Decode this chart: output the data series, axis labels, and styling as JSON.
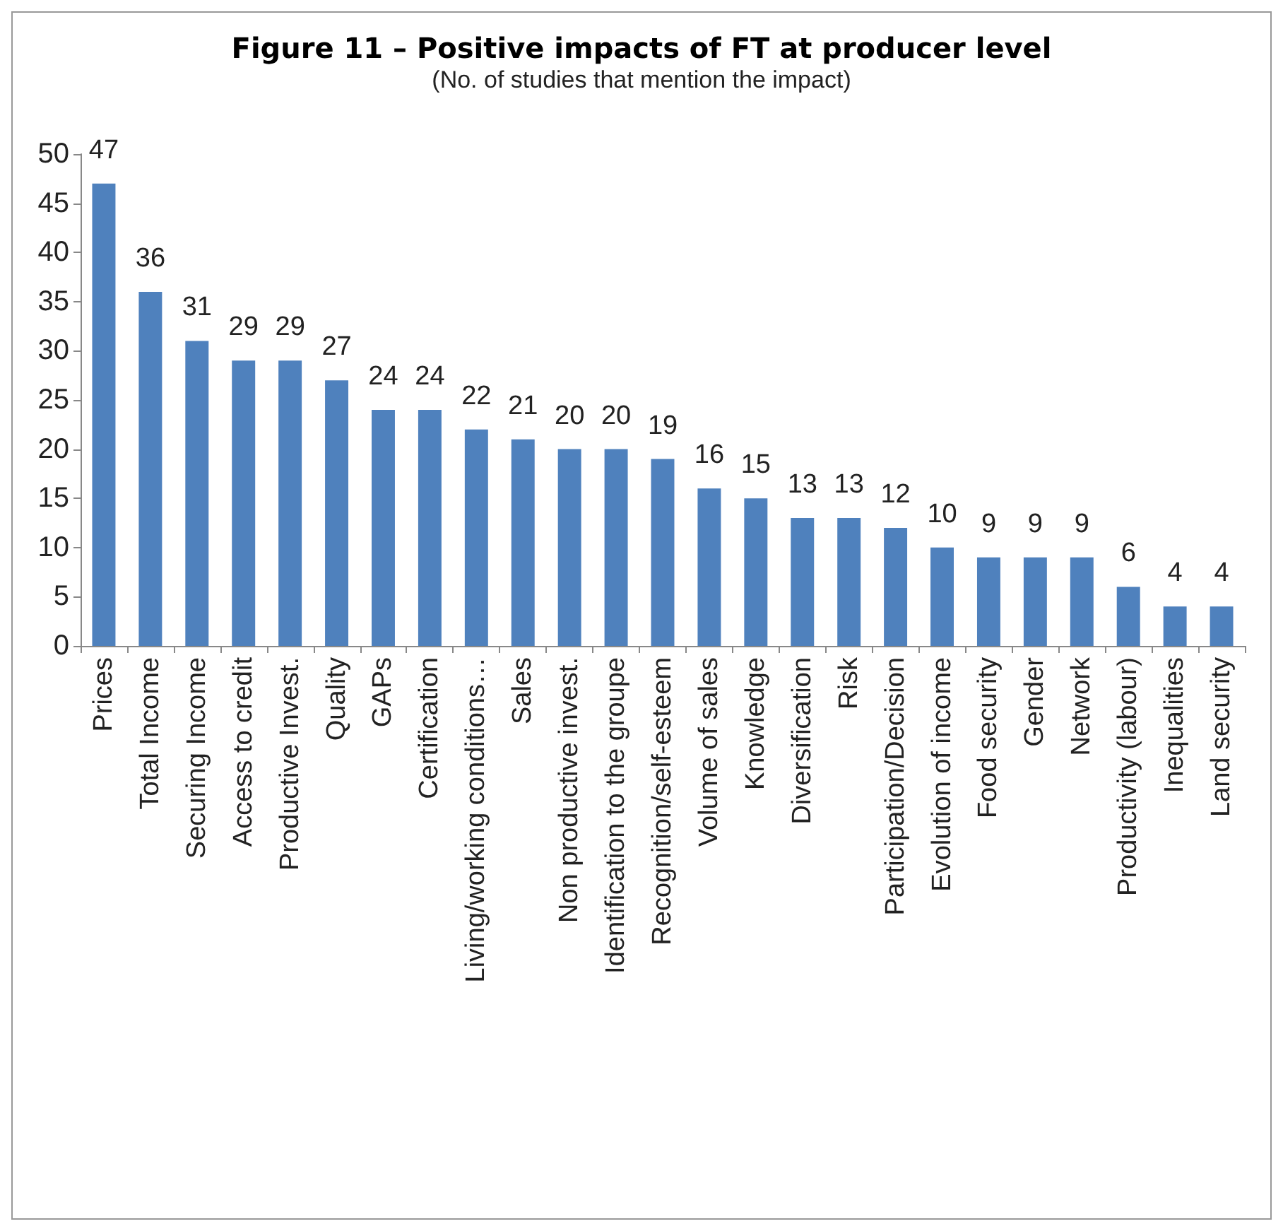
{
  "chart_data": {
    "type": "bar",
    "title": "Figure 11 – Positive impacts of FT at producer level",
    "subtitle": "(No. of studies that mention the impact)",
    "categories": [
      "Prices",
      "Total Income",
      "Securing Income",
      "Access to credit",
      "Productive Invest.",
      "Quality",
      "GAPs",
      "Certification",
      "Living/working conditions…",
      "Sales",
      "Non productive invest.",
      "Identification to the groupe",
      "Recognition/self-esteem",
      "Volume of sales",
      "Knowledge",
      "Diversification",
      "Risk",
      "Participation/Decision",
      "Evolution of income",
      "Food security",
      "Gender",
      "Network",
      "Productivity (labour)",
      "Inequalities",
      "Land security"
    ],
    "values": [
      47,
      36,
      31,
      29,
      29,
      27,
      24,
      24,
      22,
      21,
      20,
      20,
      19,
      16,
      15,
      13,
      13,
      12,
      10,
      9,
      9,
      9,
      6,
      4,
      4
    ],
    "color": "#4f81bd",
    "ylim": [
      0,
      50
    ],
    "yticks": [
      0,
      5,
      10,
      15,
      20,
      25,
      30,
      35,
      40,
      45,
      50
    ],
    "data_labels": true,
    "grid": false
  }
}
